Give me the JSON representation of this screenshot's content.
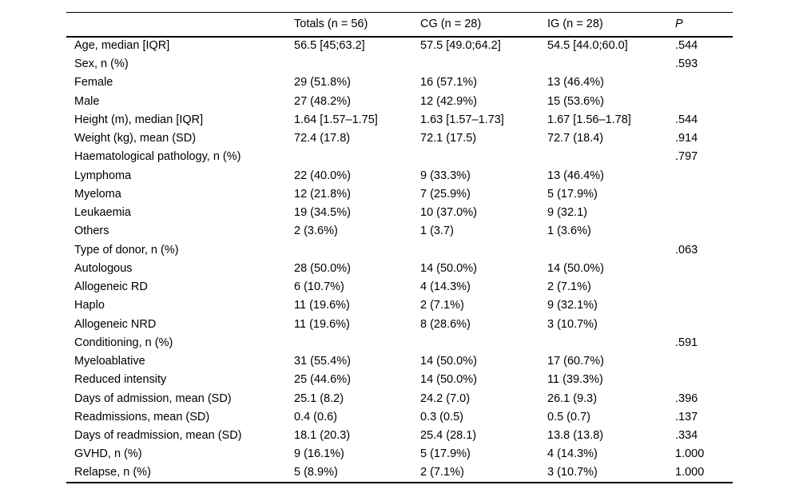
{
  "page": {
    "background_color": "#ffffff",
    "text_color": "#000000",
    "rule_color": "#000000"
  },
  "table": {
    "columns": [
      {
        "key": "label",
        "label": ""
      },
      {
        "key": "totals",
        "label": "Totals (n = 56)"
      },
      {
        "key": "cg",
        "label": "CG (n = 28)"
      },
      {
        "key": "ig",
        "label": "IG (n = 28)"
      },
      {
        "key": "p",
        "label": "P",
        "italic": true
      }
    ],
    "rows": [
      {
        "label": "Age, median [IQR]",
        "totals": "56.5 [45;63.2]",
        "cg": "57.5 [49.0;64.2]",
        "ig": "54.5 [44.0;60.0]",
        "p": ".544"
      },
      {
        "label": "Sex, n (%)",
        "totals": "",
        "cg": "",
        "ig": "",
        "p": ".593"
      },
      {
        "label": "Female",
        "totals": "29 (51.8%)",
        "cg": "16 (57.1%)",
        "ig": "13 (46.4%)",
        "p": ""
      },
      {
        "label": "Male",
        "totals": "27 (48.2%)",
        "cg": "12 (42.9%)",
        "ig": "15 (53.6%)",
        "p": ""
      },
      {
        "label": "Height (m), median [IQR]",
        "totals": "1.64 [1.57–1.75]",
        "cg": "1.63 [1.57–1.73]",
        "ig": "1.67 [1.56–1.78]",
        "p": ".544"
      },
      {
        "label": "Weight (kg), mean (SD)",
        "totals": "72.4 (17.8)",
        "cg": "72.1 (17.5)",
        "ig": "72.7 (18.4)",
        "p": ".914"
      },
      {
        "label": "Haematological pathology, n (%)",
        "totals": "",
        "cg": "",
        "ig": "",
        "p": ".797"
      },
      {
        "label": "Lymphoma",
        "totals": "22 (40.0%)",
        "cg": "9 (33.3%)",
        "ig": "13 (46.4%)",
        "p": ""
      },
      {
        "label": "Myeloma",
        "totals": "12 (21.8%)",
        "cg": "7 (25.9%)",
        "ig": "5 (17.9%)",
        "p": ""
      },
      {
        "label": "Leukaemia",
        "totals": "19 (34.5%)",
        "cg": "10 (37.0%)",
        "ig": "9 (32.1)",
        "p": ""
      },
      {
        "label": "Others",
        "totals": "2 (3.6%)",
        "cg": "1 (3.7)",
        "ig": "1 (3.6%)",
        "p": ""
      },
      {
        "label": "Type of donor, n (%)",
        "totals": "",
        "cg": "",
        "ig": "",
        "p": ".063"
      },
      {
        "label": "Autologous",
        "totals": "28 (50.0%)",
        "cg": "14 (50.0%)",
        "ig": "14 (50.0%)",
        "p": ""
      },
      {
        "label": "Allogeneic RD",
        "totals": "6 (10.7%)",
        "cg": "4 (14.3%)",
        "ig": "2 (7.1%)",
        "p": ""
      },
      {
        "label": "Haplo",
        "totals": "11 (19.6%)",
        "cg": "2 (7.1%)",
        "ig": "9 (32.1%)",
        "p": ""
      },
      {
        "label": "Allogeneic NRD",
        "totals": "11 (19.6%)",
        "cg": "8 (28.6%)",
        "ig": "3 (10.7%)",
        "p": ""
      },
      {
        "label": "Conditioning, n (%)",
        "totals": "",
        "cg": "",
        "ig": "",
        "p": ".591"
      },
      {
        "label": "Myeloablative",
        "totals": "31 (55.4%)",
        "cg": "14 (50.0%)",
        "ig": "17 (60.7%)",
        "p": ""
      },
      {
        "label": "Reduced intensity",
        "totals": "25 (44.6%)",
        "cg": "14 (50.0%)",
        "ig": "11 (39.3%)",
        "p": ""
      },
      {
        "label": "Days of admission, mean (SD)",
        "totals": "25.1 (8.2)",
        "cg": "24.2 (7.0)",
        "ig": "26.1 (9.3)",
        "p": ".396"
      },
      {
        "label": "Readmissions, mean (SD)",
        "totals": "0.4 (0.6)",
        "cg": "0.3 (0.5)",
        "ig": "0.5 (0.7)",
        "p": ".137"
      },
      {
        "label": "Days of readmission, mean (SD)",
        "totals": "18.1 (20.3)",
        "cg": "25.4 (28.1)",
        "ig": "13.8 (13.8)",
        "p": ".334"
      },
      {
        "label": "GVHD, n (%)",
        "totals": "9 (16.1%)",
        "cg": "5 (17.9%)",
        "ig": "4 (14.3%)",
        "p": "1.000"
      },
      {
        "label": "Relapse, n (%)",
        "totals": "5 (8.9%)",
        "cg": "2 (7.1%)",
        "ig": "3 (10.7%)",
        "p": "1.000"
      }
    ]
  }
}
